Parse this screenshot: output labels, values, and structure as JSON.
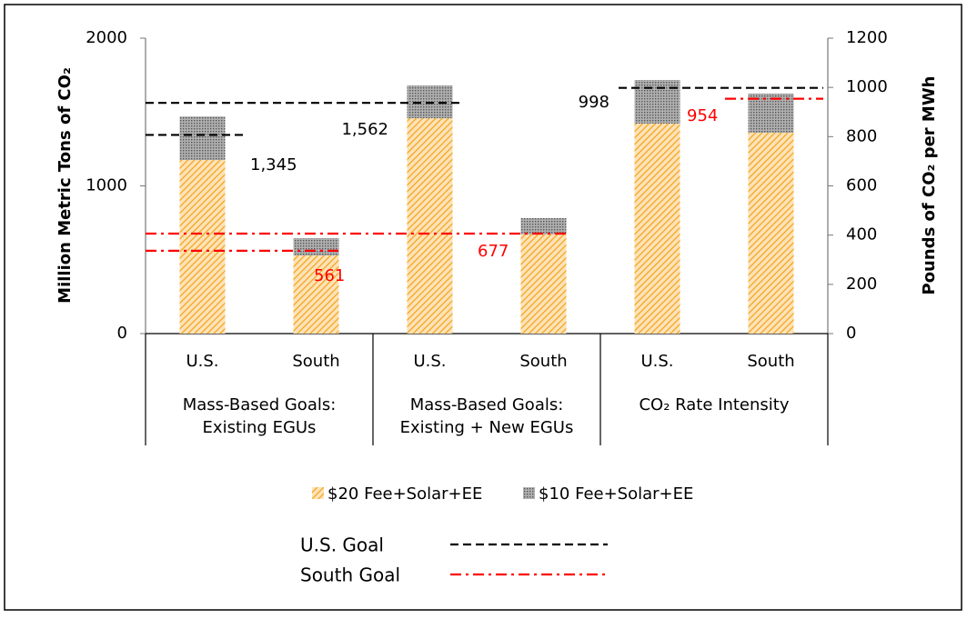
{
  "chart_data": {
    "type": "stacked_bar",
    "y_label": "Million Metric Tons of CO₂",
    "y2_label": "Pounds of CO₂ per MWh",
    "categories": [
      "U.S.",
      "South",
      "U.S.",
      "South",
      "U.S.",
      "South"
    ],
    "groups": [
      [
        "Mass-Based Goals:",
        "Existing EGUs"
      ],
      [
        "Mass-Based Goals:",
        "Existing + New EGUs"
      ],
      [
        "CO₂ Rate Intensity"
      ]
    ],
    "ylim": [
      0,
      2000
    ],
    "yticks": [
      0,
      1000,
      2000
    ],
    "y2lim": [
      0,
      1200
    ],
    "y2ticks": [
      0,
      200,
      400,
      600,
      800,
      1000,
      1200
    ],
    "series": [
      {
        "name": "$20 Fee+Solar+EE",
        "color": "#f5a623",
        "pattern": "hatch",
        "values": [
          1175,
          529,
          1458,
          671,
          null,
          null
        ]
      },
      {
        "name": "$10 Fee+Solar+EE",
        "color": "#555555",
        "pattern": "dots",
        "values": [
          295,
          117,
          222,
          111,
          null,
          null
        ]
      },
      {
        "axis": "y2",
        "color": "#f5a623",
        "pattern": "hatch",
        "values": [
          null,
          null,
          null,
          null,
          853,
          816
        ]
      },
      {
        "axis": "y2",
        "color": "#555555",
        "pattern": "dots",
        "values": [
          null,
          null,
          null,
          null,
          177,
          159
        ]
      }
    ],
    "reference_lines": [
      {
        "name": "U.S. Goal",
        "color": "#000000",
        "dash": "dashed",
        "label_color": "#000000",
        "lines": [
          {
            "value": 1345,
            "label": "1,345"
          },
          {
            "value": 1562,
            "label": "1,562"
          },
          {
            "value": 998,
            "axis": "y2"
          }
        ]
      },
      {
        "name": "South Goal",
        "color": "#ff0000",
        "dash": "dashdot",
        "label_color": "#ff0000",
        "lines": [
          {
            "value": 561
          },
          {
            "value": 677
          },
          {
            "value": 954,
            "axis": "y2"
          }
        ]
      }
    ]
  }
}
